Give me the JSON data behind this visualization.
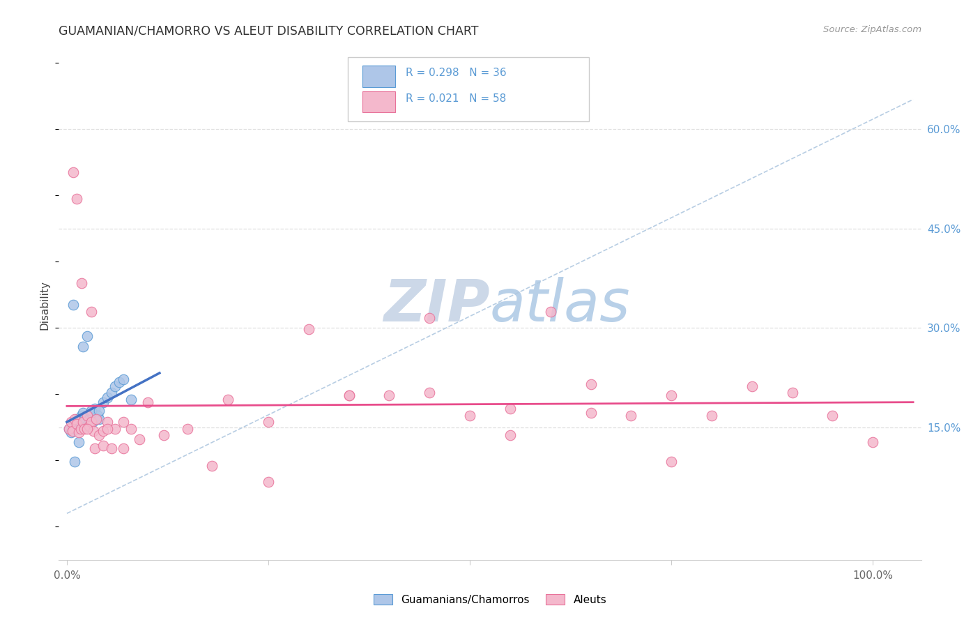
{
  "title": "GUAMANIAN/CHAMORRO VS ALEUT DISABILITY CORRELATION CHART",
  "source": "Source: ZipAtlas.com",
  "ylabel": "Disability",
  "watermark": "ZIPatlas",
  "legend_label1": "Guamanians/Chamorros",
  "legend_label2": "Aleuts",
  "R1": 0.298,
  "N1": 36,
  "R2": 0.021,
  "N2": 58,
  "color_blue_fill": "#aec6e8",
  "color_pink_fill": "#f4b8cc",
  "color_blue_edge": "#5b9bd5",
  "color_pink_edge": "#e8729a",
  "color_blue_line": "#4472C4",
  "color_pink_line": "#e84c8b",
  "color_dashed": "#b0c8e0",
  "yticks": [
    0.15,
    0.3,
    0.45,
    0.6
  ],
  "ytick_labels": [
    "15.0%",
    "30.0%",
    "45.0%",
    "60.0%"
  ],
  "ylim": [
    -0.05,
    0.72
  ],
  "xlim": [
    -0.01,
    1.06
  ],
  "blue_scatter_x": [
    0.003,
    0.005,
    0.007,
    0.009,
    0.01,
    0.011,
    0.012,
    0.013,
    0.014,
    0.015,
    0.016,
    0.018,
    0.02,
    0.022,
    0.024,
    0.026,
    0.028,
    0.03,
    0.032,
    0.035,
    0.038,
    0.04,
    0.045,
    0.05,
    0.055,
    0.06,
    0.065,
    0.07,
    0.08,
    0.02,
    0.025,
    0.008,
    0.015,
    0.03,
    0.01,
    0.04
  ],
  "blue_scatter_y": [
    0.148,
    0.142,
    0.152,
    0.155,
    0.148,
    0.158,
    0.162,
    0.155,
    0.148,
    0.162,
    0.158,
    0.168,
    0.172,
    0.162,
    0.152,
    0.168,
    0.162,
    0.172,
    0.158,
    0.178,
    0.168,
    0.162,
    0.188,
    0.195,
    0.202,
    0.212,
    0.218,
    0.222,
    0.192,
    0.272,
    0.288,
    0.335,
    0.128,
    0.175,
    0.098,
    0.175
  ],
  "pink_scatter_x": [
    0.003,
    0.005,
    0.007,
    0.01,
    0.012,
    0.015,
    0.017,
    0.02,
    0.022,
    0.025,
    0.028,
    0.03,
    0.033,
    0.036,
    0.04,
    0.045,
    0.05,
    0.06,
    0.07,
    0.08,
    0.1,
    0.15,
    0.2,
    0.25,
    0.3,
    0.35,
    0.4,
    0.45,
    0.5,
    0.55,
    0.6,
    0.65,
    0.7,
    0.75,
    0.8,
    0.85,
    0.9,
    0.95,
    1.0,
    0.008,
    0.012,
    0.018,
    0.025,
    0.035,
    0.045,
    0.055,
    0.07,
    0.09,
    0.12,
    0.18,
    0.25,
    0.35,
    0.45,
    0.55,
    0.65,
    0.75,
    0.03,
    0.05
  ],
  "pink_scatter_y": [
    0.148,
    0.158,
    0.145,
    0.162,
    0.155,
    0.142,
    0.148,
    0.158,
    0.148,
    0.168,
    0.152,
    0.158,
    0.145,
    0.162,
    0.138,
    0.145,
    0.158,
    0.148,
    0.158,
    0.148,
    0.188,
    0.148,
    0.192,
    0.158,
    0.298,
    0.198,
    0.198,
    0.315,
    0.168,
    0.138,
    0.325,
    0.172,
    0.168,
    0.198,
    0.168,
    0.212,
    0.202,
    0.168,
    0.128,
    0.535,
    0.495,
    0.368,
    0.148,
    0.118,
    0.122,
    0.118,
    0.118,
    0.132,
    0.138,
    0.092,
    0.068,
    0.198,
    0.202,
    0.178,
    0.215,
    0.098,
    0.325,
    0.148
  ],
  "blue_line_x": [
    0.0,
    0.115
  ],
  "blue_line_y": [
    0.158,
    0.232
  ],
  "pink_line_x": [
    0.0,
    1.05
  ],
  "pink_line_y": [
    0.182,
    0.188
  ],
  "dashed_line_x": [
    0.0,
    1.05
  ],
  "dashed_line_y": [
    0.02,
    0.645
  ],
  "grid_color": "#d8d8d8",
  "bg_color": "#ffffff",
  "title_color": "#333333",
  "right_tick_color": "#5b9bd5",
  "watermark_color": "#ccd8e8",
  "marker_size": 110
}
